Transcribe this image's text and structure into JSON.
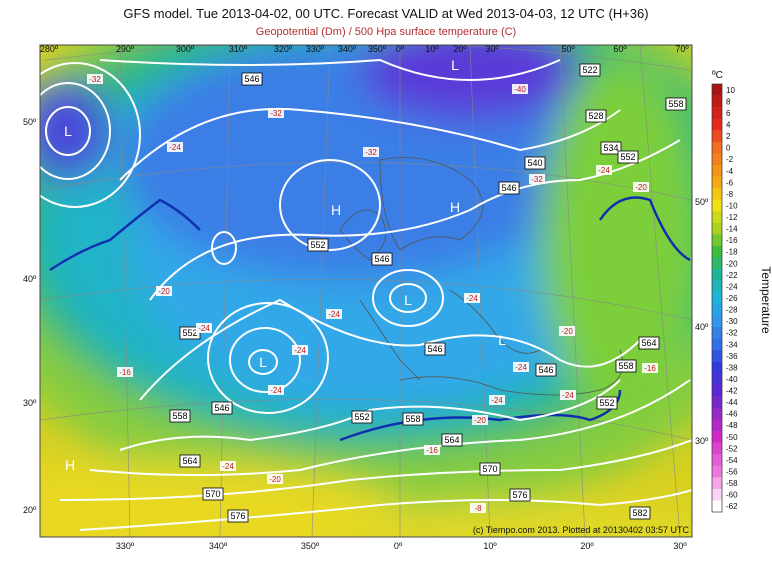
{
  "header": {
    "title": "GFS model. Tue 2013-04-02, 00 UTC. Forecast VALID at Wed 2013-04-03, 12 UTC (H+36)",
    "subtitle": "Geopotential (Dm) / 500 Hpa surface temperature (C)"
  },
  "map": {
    "top_labels": [
      "280º",
      "290º",
      "300º",
      "310º",
      "320º",
      "330º",
      "340º",
      "350º",
      "0º",
      "10º",
      "20º",
      "30º",
      "50º",
      "60º",
      "70º"
    ],
    "bottom_labels": [
      "330º",
      "340º",
      "350º",
      "0º",
      "10º",
      "20º",
      "30º"
    ],
    "left_labels": [
      "50º",
      "40º",
      "30º",
      "20º"
    ],
    "right_labels": [
      "50º",
      "40º",
      "30º"
    ],
    "geopotential_labels": [
      546,
      522,
      558,
      528,
      534,
      552,
      540,
      546,
      552,
      546,
      552,
      546,
      564,
      558,
      546,
      546,
      558,
      552,
      558,
      552,
      564,
      564,
      570,
      570,
      576,
      576,
      582
    ],
    "temperature_labels": [
      -32,
      -40,
      -32,
      -24,
      -32,
      -24,
      -20,
      -32,
      -20,
      -24,
      -24,
      -24,
      -20,
      -24,
      -16,
      -24,
      -24,
      -24,
      -20,
      -24,
      -16,
      -16,
      -24,
      -20,
      -8
    ],
    "centers": [
      "L",
      "H",
      "H",
      "L",
      "L",
      "L",
      "H",
      "L"
    ]
  },
  "colorbar": {
    "unit": "ºC",
    "label": "Temperature",
    "ticks": [
      10,
      8,
      6,
      4,
      2,
      0,
      -2,
      -4,
      -6,
      -8,
      -10,
      -12,
      -14,
      -16,
      -18,
      -20,
      -22,
      -24,
      -26,
      -28,
      -30,
      -32,
      -34,
      -36,
      -38,
      -40,
      -42,
      -44,
      -46,
      -48,
      -50,
      -52,
      -54,
      -56,
      -58,
      -60,
      -62
    ]
  },
  "credit": "(c) Tiempo.com 2013. Plotted at 20130402 03:57 UTC"
}
